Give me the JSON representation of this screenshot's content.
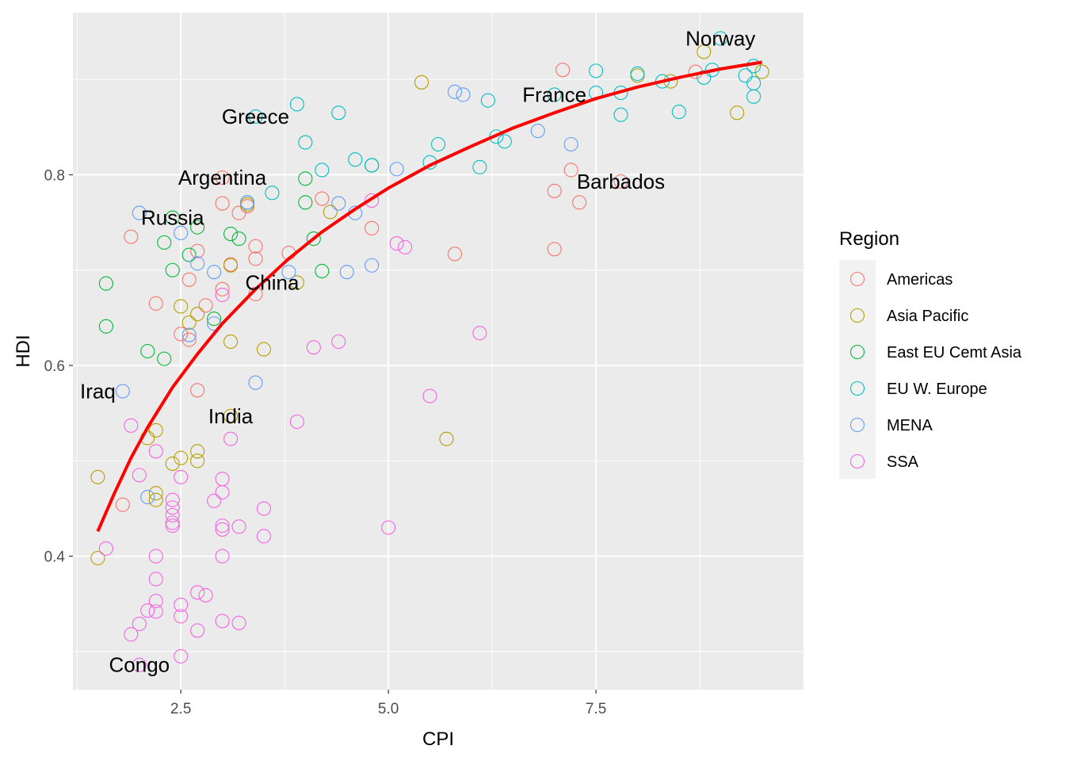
{
  "chart_data": {
    "type": "scatter",
    "title": "",
    "xlabel": "CPI",
    "ylabel": "HDI",
    "xlim": [
      1.2,
      10.0
    ],
    "ylim": [
      0.26,
      0.97
    ],
    "x_ticks": [
      2.5,
      5.0,
      7.5
    ],
    "x_tick_labels": [
      "2.5",
      "5.0",
      "7.5"
    ],
    "y_ticks": [
      0.4,
      0.6,
      0.8
    ],
    "y_tick_labels": [
      "0.4",
      "0.6",
      "0.8"
    ],
    "grid": true,
    "legend": {
      "title": "Region",
      "position": "right",
      "entries": [
        "Americas",
        "Asia Pacific",
        "East EU Cemt Asia",
        "EU W. Europe",
        "MENA",
        "SSA"
      ]
    },
    "colors": {
      "Americas": "#F8766D",
      "Asia Pacific": "#B79F00",
      "East EU Cemt Asia": "#00BA38",
      "EU W. Europe": "#00BFC4",
      "MENA": "#619CFF",
      "SSA": "#F564E3",
      "trend": "#FF0000",
      "panel": "#EBEBEB",
      "grid": "#FFFFFF"
    },
    "series": [
      {
        "name": "Americas",
        "points": [
          [
            1.9,
            0.735
          ],
          [
            2.2,
            0.665
          ],
          [
            2.5,
            0.633
          ],
          [
            2.6,
            0.69
          ],
          [
            2.6,
            0.627
          ],
          [
            2.7,
            0.72
          ],
          [
            2.7,
            0.574
          ],
          [
            2.8,
            0.663
          ],
          [
            3.0,
            0.797
          ],
          [
            3.0,
            0.77
          ],
          [
            3.0,
            0.68
          ],
          [
            3.1,
            0.706
          ],
          [
            3.2,
            0.76
          ],
          [
            3.3,
            0.767
          ],
          [
            3.4,
            0.725
          ],
          [
            3.4,
            0.712
          ],
          [
            3.4,
            0.675
          ],
          [
            3.8,
            0.718
          ],
          [
            4.2,
            0.775
          ],
          [
            4.8,
            0.744
          ],
          [
            5.8,
            0.717
          ],
          [
            7.0,
            0.783
          ],
          [
            7.0,
            0.722
          ],
          [
            7.1,
            0.91
          ],
          [
            7.2,
            0.805
          ],
          [
            7.3,
            0.771
          ],
          [
            7.8,
            0.793
          ],
          [
            8.7,
            0.908
          ],
          [
            1.8,
            0.454
          ]
        ]
      },
      {
        "name": "Asia Pacific",
        "points": [
          [
            1.5,
            0.483
          ],
          [
            1.5,
            0.398
          ],
          [
            2.1,
            0.524
          ],
          [
            2.2,
            0.532
          ],
          [
            2.2,
            0.466
          ],
          [
            2.2,
            0.459
          ],
          [
            2.4,
            0.497
          ],
          [
            2.5,
            0.503
          ],
          [
            2.5,
            0.662
          ],
          [
            2.6,
            0.645
          ],
          [
            2.7,
            0.51
          ],
          [
            2.7,
            0.5
          ],
          [
            2.7,
            0.654
          ],
          [
            3.1,
            0.547
          ],
          [
            3.1,
            0.625
          ],
          [
            3.1,
            0.705
          ],
          [
            3.3,
            0.769
          ],
          [
            3.5,
            0.617
          ],
          [
            3.9,
            0.687
          ],
          [
            4.3,
            0.761
          ],
          [
            5.4,
            0.897
          ],
          [
            5.7,
            0.523
          ],
          [
            8.0,
            0.904
          ],
          [
            8.4,
            0.898
          ],
          [
            8.8,
            0.929
          ],
          [
            9.2,
            0.865
          ],
          [
            9.5,
            0.908
          ]
        ]
      },
      {
        "name": "East EU Cemt Asia",
        "points": [
          [
            1.6,
            0.686
          ],
          [
            1.6,
            0.641
          ],
          [
            2.1,
            0.615
          ],
          [
            2.3,
            0.607
          ],
          [
            2.3,
            0.729
          ],
          [
            2.4,
            0.755
          ],
          [
            2.4,
            0.7
          ],
          [
            2.6,
            0.716
          ],
          [
            2.7,
            0.745
          ],
          [
            2.9,
            0.649
          ],
          [
            3.1,
            0.738
          ],
          [
            3.2,
            0.733
          ],
          [
            3.3,
            0.771
          ],
          [
            4.0,
            0.796
          ],
          [
            4.0,
            0.771
          ],
          [
            4.1,
            0.733
          ],
          [
            4.2,
            0.699
          ],
          [
            4.8,
            0.81
          ]
        ]
      },
      {
        "name": "EU W. Europe",
        "points": [
          [
            3.4,
            0.861
          ],
          [
            3.6,
            0.781
          ],
          [
            3.9,
            0.874
          ],
          [
            4.0,
            0.834
          ],
          [
            4.2,
            0.805
          ],
          [
            4.4,
            0.865
          ],
          [
            4.6,
            0.816
          ],
          [
            4.8,
            0.81
          ],
          [
            5.5,
            0.813
          ],
          [
            5.6,
            0.832
          ],
          [
            6.1,
            0.808
          ],
          [
            6.2,
            0.878
          ],
          [
            6.3,
            0.84
          ],
          [
            6.4,
            0.835
          ],
          [
            7.0,
            0.884
          ],
          [
            7.5,
            0.909
          ],
          [
            7.5,
            0.886
          ],
          [
            7.8,
            0.886
          ],
          [
            7.8,
            0.863
          ],
          [
            8.0,
            0.906
          ],
          [
            8.3,
            0.898
          ],
          [
            8.5,
            0.866
          ],
          [
            8.8,
            0.902
          ],
          [
            8.9,
            0.91
          ],
          [
            9.0,
            0.943
          ],
          [
            9.3,
            0.904
          ],
          [
            9.4,
            0.896
          ],
          [
            9.4,
            0.882
          ],
          [
            9.4,
            0.914
          ]
        ]
      },
      {
        "name": "MENA",
        "points": [
          [
            1.8,
            0.573
          ],
          [
            2.0,
            0.76
          ],
          [
            2.1,
            0.462
          ],
          [
            2.5,
            0.739
          ],
          [
            2.6,
            0.632
          ],
          [
            2.7,
            0.707
          ],
          [
            2.9,
            0.698
          ],
          [
            2.9,
            0.644
          ],
          [
            3.3,
            0.771
          ],
          [
            3.4,
            0.582
          ],
          [
            3.8,
            0.698
          ],
          [
            4.4,
            0.77
          ],
          [
            4.5,
            0.698
          ],
          [
            4.6,
            0.76
          ],
          [
            4.8,
            0.705
          ],
          [
            5.1,
            0.806
          ],
          [
            5.8,
            0.887
          ],
          [
            5.9,
            0.884
          ],
          [
            6.8,
            0.846
          ],
          [
            7.2,
            0.832
          ]
        ]
      },
      {
        "name": "SSA",
        "points": [
          [
            1.6,
            0.408
          ],
          [
            1.9,
            0.318
          ],
          [
            1.9,
            0.537
          ],
          [
            2.0,
            0.286
          ],
          [
            2.0,
            0.329
          ],
          [
            2.0,
            0.485
          ],
          [
            2.1,
            0.343
          ],
          [
            2.2,
            0.51
          ],
          [
            2.2,
            0.4
          ],
          [
            2.2,
            0.376
          ],
          [
            2.2,
            0.353
          ],
          [
            2.2,
            0.342
          ],
          [
            2.4,
            0.459
          ],
          [
            2.4,
            0.451
          ],
          [
            2.4,
            0.443
          ],
          [
            2.4,
            0.435
          ],
          [
            2.4,
            0.432
          ],
          [
            2.5,
            0.349
          ],
          [
            2.5,
            0.337
          ],
          [
            2.5,
            0.295
          ],
          [
            2.5,
            0.483
          ],
          [
            2.7,
            0.362
          ],
          [
            2.7,
            0.322
          ],
          [
            2.8,
            0.359
          ],
          [
            2.9,
            0.458
          ],
          [
            3.0,
            0.481
          ],
          [
            3.0,
            0.467
          ],
          [
            3.0,
            0.432
          ],
          [
            3.0,
            0.428
          ],
          [
            3.0,
            0.4
          ],
          [
            3.0,
            0.332
          ],
          [
            3.0,
            0.674
          ],
          [
            3.1,
            0.523
          ],
          [
            3.2,
            0.431
          ],
          [
            3.2,
            0.33
          ],
          [
            3.5,
            0.45
          ],
          [
            3.5,
            0.421
          ],
          [
            3.9,
            0.541
          ],
          [
            4.1,
            0.619
          ],
          [
            4.4,
            0.625
          ],
          [
            4.8,
            0.773
          ],
          [
            5.0,
            0.43
          ],
          [
            5.1,
            0.728
          ],
          [
            5.2,
            0.724
          ],
          [
            5.5,
            0.568
          ],
          [
            6.1,
            0.634
          ]
        ]
      }
    ],
    "trend_line": {
      "x": [
        1.5,
        1.7,
        1.9,
        2.1,
        2.4,
        2.7,
        3.0,
        3.4,
        3.8,
        4.2,
        4.6,
        5.0,
        5.5,
        6.0,
        6.5,
        7.0,
        7.5,
        8.0,
        8.5,
        9.0,
        9.5
      ],
      "y": [
        0.426,
        0.466,
        0.503,
        0.535,
        0.577,
        0.612,
        0.644,
        0.68,
        0.712,
        0.74,
        0.764,
        0.786,
        0.81,
        0.83,
        0.849,
        0.865,
        0.88,
        0.892,
        0.902,
        0.911,
        0.918
      ]
    },
    "annotations": [
      {
        "label": "Norway",
        "x": 9.0,
        "y": 0.943
      },
      {
        "label": "France",
        "x": 7.0,
        "y": 0.884
      },
      {
        "label": "Greece",
        "x": 3.4,
        "y": 0.861
      },
      {
        "label": "Argentina",
        "x": 3.0,
        "y": 0.797
      },
      {
        "label": "Barbados",
        "x": 7.8,
        "y": 0.793
      },
      {
        "label": "Russia",
        "x": 2.4,
        "y": 0.755
      },
      {
        "label": "China",
        "x": 3.6,
        "y": 0.687
      },
      {
        "label": "Iraq",
        "x": 1.5,
        "y": 0.573
      },
      {
        "label": "India",
        "x": 3.1,
        "y": 0.547
      },
      {
        "label": "Congo",
        "x": 2.0,
        "y": 0.286
      }
    ]
  }
}
